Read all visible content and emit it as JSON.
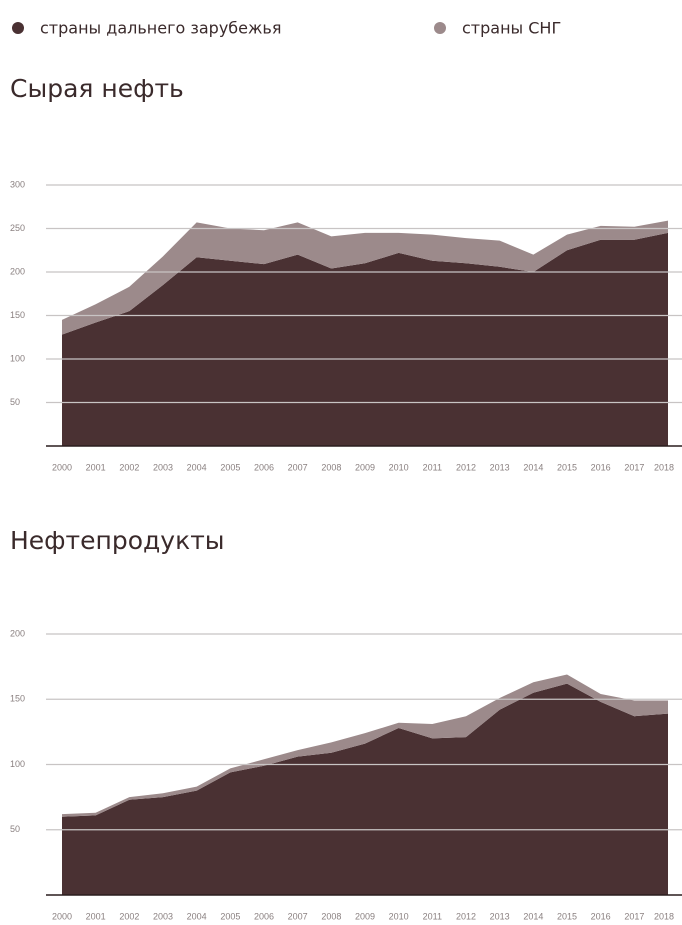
{
  "legend": [
    {
      "name": "страны дальнего зарубежья",
      "color": "#4a3133"
    },
    {
      "name": "страны СНГ",
      "color": "#9c8a8b"
    }
  ],
  "chart_data": [
    {
      "type": "stacked_area",
      "title": "Сырая нефть",
      "categories": [
        "2000",
        "2001",
        "2002",
        "2003",
        "2004",
        "2005",
        "2006",
        "2007",
        "2008",
        "2009",
        "2010",
        "2011",
        "2012",
        "2013",
        "2014",
        "2015",
        "2016",
        "2017",
        "2018"
      ],
      "series": [
        {
          "color": "#4a3133",
          "values": [
            128,
            142,
            155,
            185,
            217,
            213,
            209,
            220,
            204,
            210,
            222,
            213,
            210,
            206,
            200,
            225,
            237,
            237,
            245
          ]
        },
        {
          "color": "#9c8a8b",
          "values": [
            17,
            21,
            28,
            33,
            40,
            37,
            39,
            37,
            37,
            35,
            23,
            30,
            29,
            30,
            20,
            18,
            16,
            15,
            14
          ]
        }
      ],
      "ylim": [
        0,
        300
      ],
      "yticks": [
        50,
        100,
        150,
        200,
        250,
        300
      ],
      "grid": true
    },
    {
      "type": "stacked_area",
      "title": "Нефтепродукты",
      "categories": [
        "2000",
        "2001",
        "2002",
        "2003",
        "2004",
        "2005",
        "2006",
        "2007",
        "2008",
        "2009",
        "2010",
        "2011",
        "2012",
        "2013",
        "2014",
        "2015",
        "2016",
        "2017",
        "2018"
      ],
      "series": [
        {
          "color": "#4a3133",
          "values": [
            60,
            61,
            73,
            75,
            80,
            94,
            99,
            106,
            109,
            116,
            128,
            120,
            121,
            142,
            155,
            162,
            148,
            137,
            139
          ]
        },
        {
          "color": "#9c8a8b",
          "values": [
            2,
            2,
            2,
            3,
            3,
            3,
            5,
            5,
            8,
            8,
            4,
            11,
            16,
            9,
            8,
            7,
            6,
            12,
            10
          ]
        }
      ],
      "ylim": [
        0,
        200
      ],
      "yticks": [
        50,
        100,
        150,
        200
      ],
      "grid": true
    }
  ]
}
